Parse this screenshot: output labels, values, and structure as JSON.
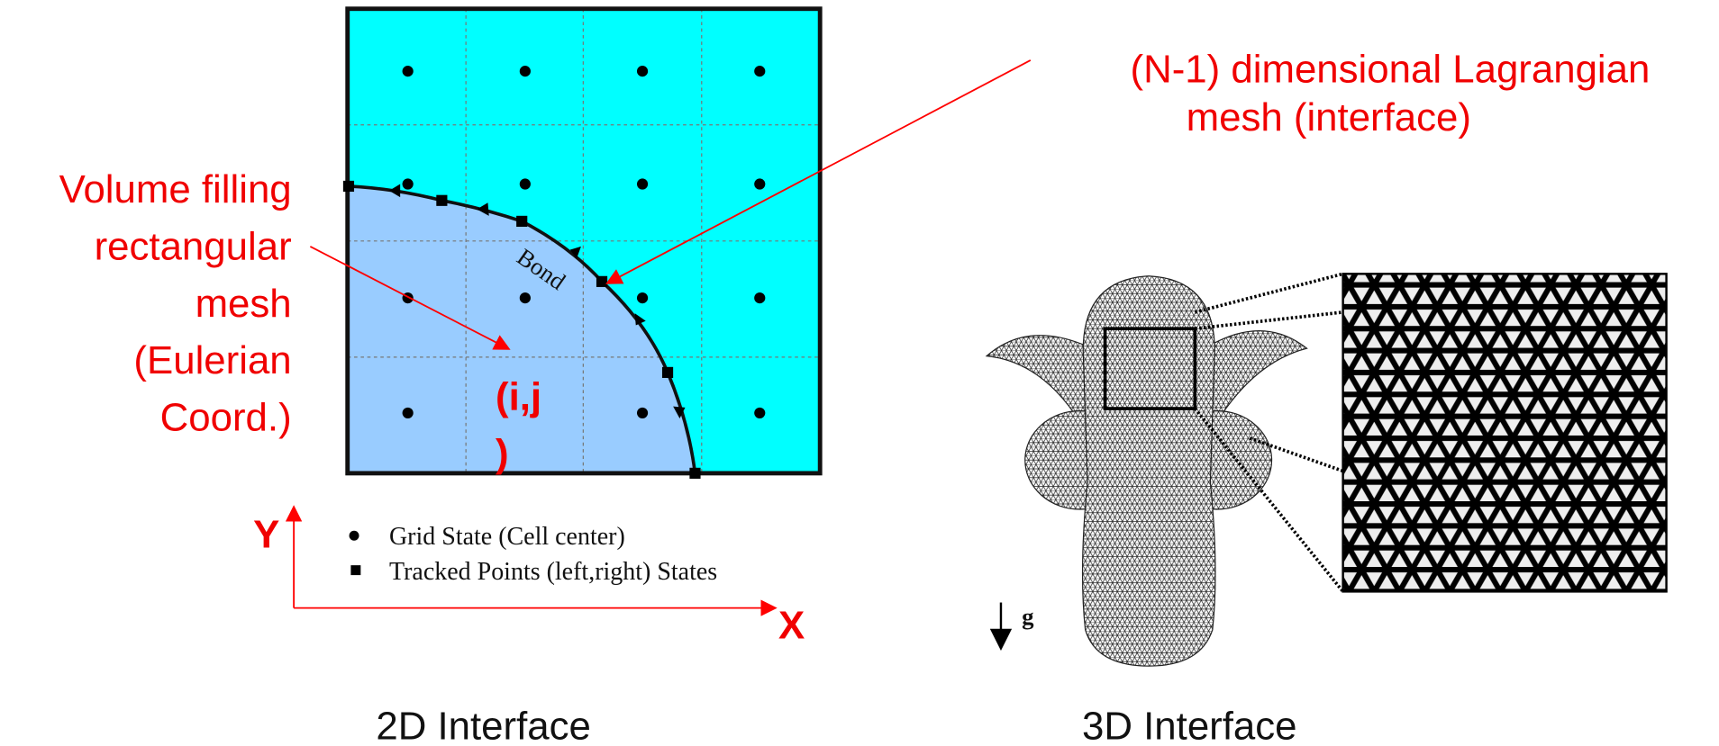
{
  "labels": {
    "lagrangian": [
      "(N-1) dimensional Lagrangian",
      "mesh (interface)"
    ],
    "volume": [
      "Volume filling",
      "rectangular",
      "mesh",
      "(Eulerian",
      "Coord.)"
    ],
    "cell": [
      "(i,j",
      ")"
    ],
    "bond": "Bond",
    "axis_y": "Y",
    "axis_x": "X",
    "gravity": "g"
  },
  "legend": [
    "Grid State (Cell center)",
    "Tracked Points (left,right) States"
  ],
  "captions": [
    "2D Interface",
    "3D Interface"
  ]
}
